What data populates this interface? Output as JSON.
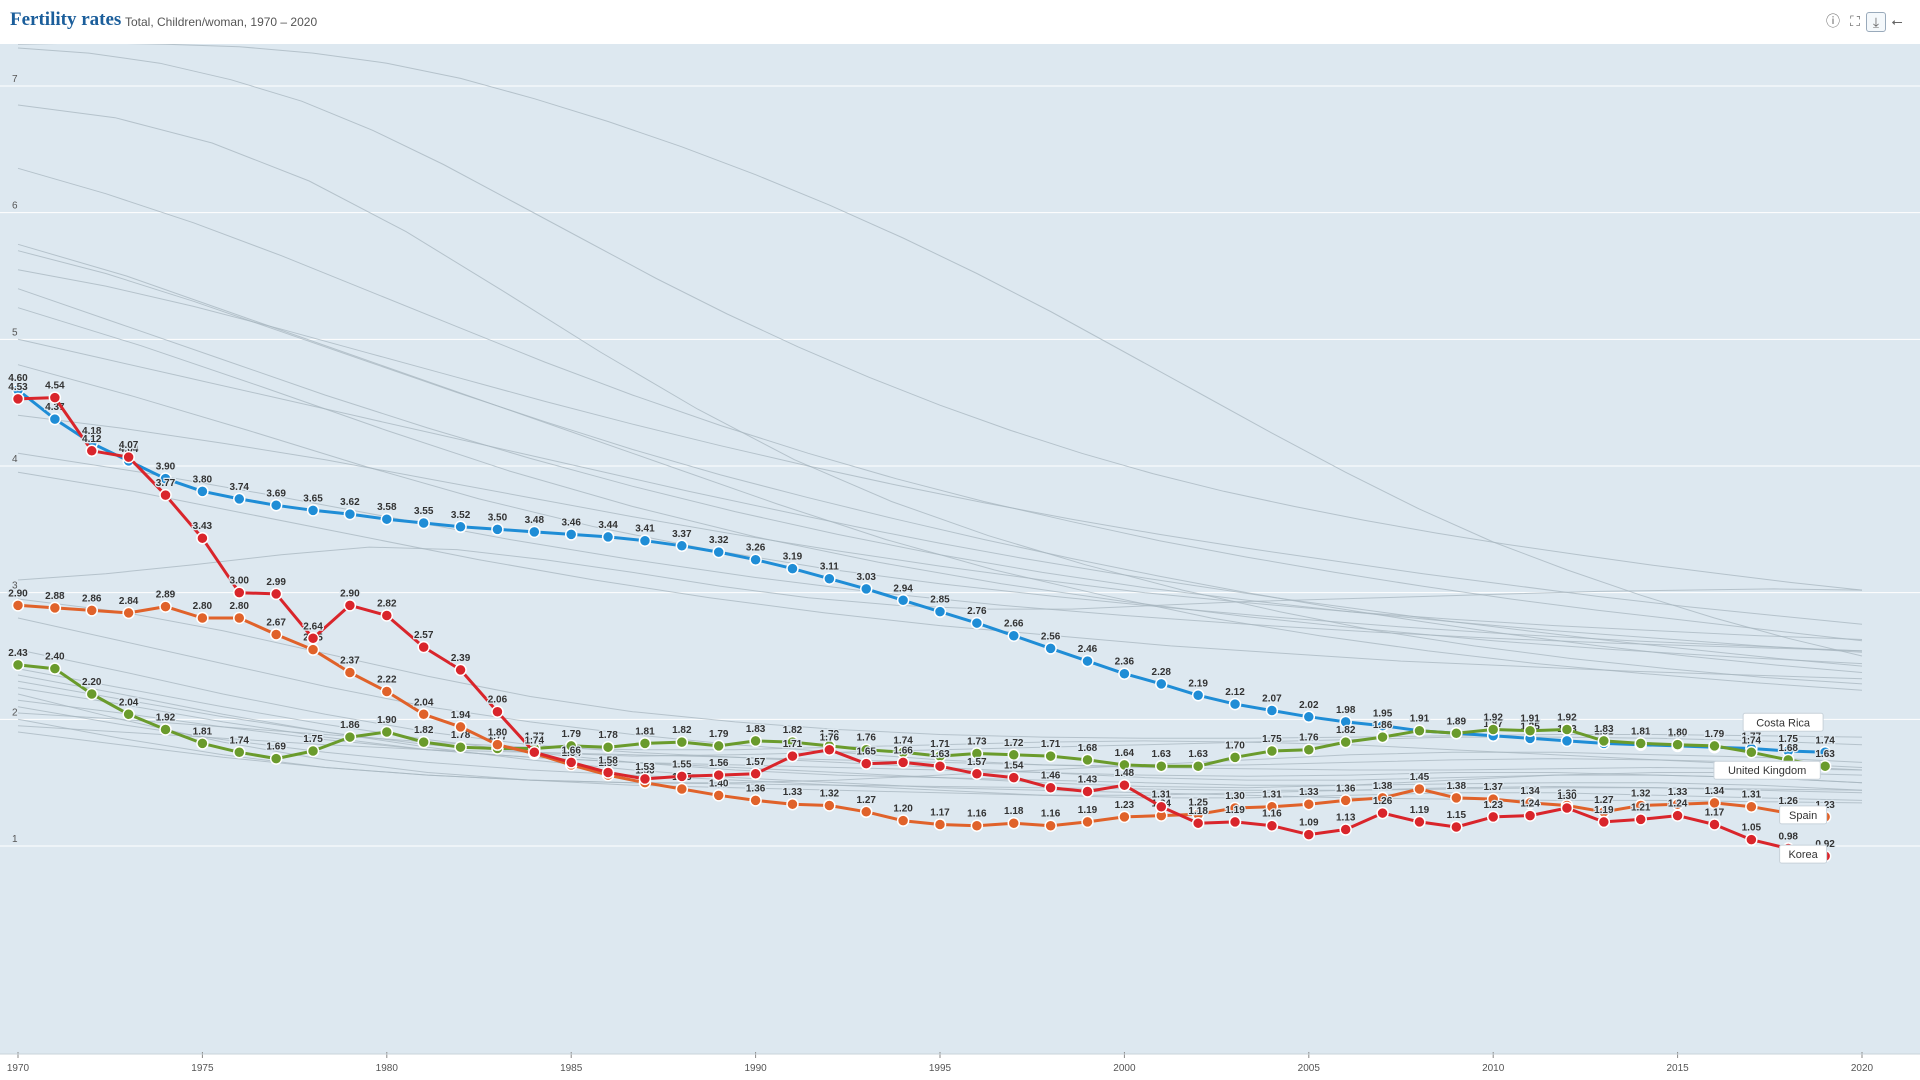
{
  "header": {
    "title": "Fertility rates",
    "subtitle": "Total, Children/woman, 1970 – 2020",
    "tools": [
      "info-icon",
      "fullscreen-icon",
      "download-icon",
      "share-icon"
    ]
  },
  "chart_data": {
    "type": "line",
    "title": "Fertility rates",
    "subtitle": "Total, Children/woman, 1970 – 2020",
    "x_ticks": [
      1970,
      1975,
      1980,
      1985,
      1990,
      1995,
      2000,
      2005,
      2010,
      2015,
      2020
    ],
    "y_ticks": [
      1,
      2,
      3,
      4,
      5,
      6,
      7
    ],
    "xlim": [
      1970,
      2020
    ],
    "ylim": [
      0.9,
      7.4
    ],
    "grid": "horizontal",
    "colors": {
      "background": "#dde8f0",
      "grid": "#ffffff",
      "background_series": "#a7b5bf"
    },
    "highlighted": [
      {
        "name": "Costa Rica",
        "color": "#1f8dd6",
        "start": 1970,
        "values": [
          4.6,
          4.37,
          4.18,
          4.04,
          3.9,
          3.8,
          3.74,
          3.69,
          3.65,
          3.62,
          3.58,
          3.55,
          3.52,
          3.5,
          3.48,
          3.46,
          3.44,
          3.41,
          3.37,
          3.32,
          3.26,
          3.19,
          3.11,
          3.03,
          2.94,
          2.85,
          2.76,
          2.66,
          2.56,
          2.46,
          2.36,
          2.28,
          2.19,
          2.12,
          2.07,
          2.02,
          1.98,
          1.95,
          1.91,
          1.89,
          1.87,
          1.85,
          1.83,
          1.81,
          1.8,
          1.79,
          1.78,
          1.77,
          1.75,
          1.74
        ]
      },
      {
        "name": "United Kingdom",
        "color": "#6a9b2c",
        "start": 1970,
        "values": [
          2.43,
          2.4,
          2.2,
          2.04,
          1.92,
          1.81,
          1.74,
          1.69,
          1.75,
          1.86,
          1.9,
          1.82,
          1.78,
          1.77,
          1.77,
          1.79,
          1.78,
          1.81,
          1.82,
          1.79,
          1.83,
          1.82,
          1.79,
          1.76,
          1.74,
          1.71,
          1.73,
          1.72,
          1.71,
          1.68,
          1.64,
          1.63,
          1.63,
          1.7,
          1.75,
          1.76,
          1.82,
          1.86,
          1.91,
          1.89,
          1.92,
          1.91,
          1.92,
          1.83,
          1.81,
          1.8,
          1.79,
          1.74,
          1.68,
          1.63
        ]
      },
      {
        "name": "Spain",
        "color": "#e0622a",
        "start": 1970,
        "values": [
          2.9,
          2.88,
          2.86,
          2.84,
          2.89,
          2.8,
          2.8,
          2.67,
          2.55,
          2.37,
          2.22,
          2.04,
          1.94,
          1.8,
          1.73,
          1.64,
          1.56,
          1.5,
          1.45,
          1.4,
          1.36,
          1.33,
          1.32,
          1.27,
          1.2,
          1.17,
          1.16,
          1.18,
          1.16,
          1.19,
          1.23,
          1.24,
          1.25,
          1.3,
          1.31,
          1.33,
          1.36,
          1.38,
          1.45,
          1.38,
          1.37,
          1.34,
          1.32,
          1.27,
          1.32,
          1.33,
          1.34,
          1.31,
          1.26,
          1.23
        ]
      },
      {
        "name": "Korea",
        "color": "#d9252b",
        "start": 1970,
        "values": [
          4.53,
          4.54,
          4.12,
          4.07,
          3.77,
          3.43,
          3.0,
          2.99,
          2.64,
          2.9,
          2.82,
          2.57,
          2.39,
          2.06,
          1.74,
          1.66,
          1.58,
          1.53,
          1.55,
          1.56,
          1.57,
          1.71,
          1.76,
          1.65,
          1.66,
          1.63,
          1.57,
          1.54,
          1.46,
          1.43,
          1.48,
          1.31,
          1.18,
          1.19,
          1.16,
          1.09,
          1.13,
          1.26,
          1.19,
          1.15,
          1.23,
          1.24,
          1.3,
          1.19,
          1.21,
          1.24,
          1.17,
          1.05,
          0.98,
          0.92
        ]
      }
    ],
    "background_series": [
      [
        7.3,
        7.26,
        7.18,
        7.05,
        6.88,
        6.65,
        6.38,
        6.08,
        5.78,
        5.48,
        5.2,
        4.94,
        4.7,
        4.48,
        4.28,
        4.1,
        3.94,
        3.8,
        3.68,
        3.57,
        3.47,
        3.38,
        3.3,
        3.22,
        3.15,
        3.08,
        3.02
      ],
      [
        7.33,
        7.34,
        7.33,
        7.31,
        7.26,
        7.18,
        7.06,
        6.9,
        6.72,
        6.52,
        6.3,
        6.06,
        5.8,
        5.52,
        5.22,
        4.9,
        4.58,
        4.26,
        3.95,
        3.66,
        3.4,
        3.18,
        2.98,
        2.8,
        2.64,
        2.5
      ],
      [
        6.85,
        6.75,
        6.55,
        6.25,
        5.85,
        5.38,
        4.9,
        4.45,
        4.05,
        3.72,
        3.45,
        3.22,
        3.02,
        2.85,
        2.7,
        2.58,
        2.48,
        2.4,
        2.33,
        2.28
      ],
      [
        6.35,
        6.15,
        5.92,
        5.66,
        5.38,
        5.1,
        4.82,
        4.56,
        4.32,
        4.1,
        3.9,
        3.72,
        3.56,
        3.41,
        3.28,
        3.16,
        3.05,
        2.95,
        2.86,
        2.78,
        2.7,
        2.62
      ],
      [
        5.75,
        5.5,
        5.2,
        4.9,
        4.6,
        4.3,
        4.0,
        3.7,
        3.42,
        3.18,
        2.98,
        2.8,
        2.66,
        2.54,
        2.44,
        2.36,
        2.29,
        2.23
      ],
      [
        5.7,
        5.52,
        5.3,
        5.06,
        4.82,
        4.58,
        4.35,
        4.13,
        3.93,
        3.75,
        3.58,
        3.42,
        3.27,
        3.13,
        3.0,
        2.88,
        2.77,
        2.67,
        2.58,
        2.5,
        2.43,
        2.37
      ],
      [
        5.55,
        5.42,
        5.26,
        5.08,
        4.89,
        4.7,
        4.51,
        4.33,
        4.16,
        4.0,
        3.85,
        3.71,
        3.58,
        3.46,
        3.35,
        3.25,
        3.15,
        3.06,
        2.97,
        2.89,
        2.82,
        2.75
      ],
      [
        5.4,
        5.12,
        4.84,
        4.56,
        4.3,
        4.06,
        3.84,
        3.64,
        3.46,
        3.3,
        3.16,
        3.04,
        2.94,
        2.85,
        2.77,
        2.7,
        2.64,
        2.58,
        2.53
      ],
      [
        5.25,
        4.95,
        4.62,
        4.28,
        3.96,
        3.68,
        3.44,
        3.24,
        3.07,
        2.93,
        2.81,
        2.71,
        2.62,
        2.55,
        2.49,
        2.44
      ],
      [
        5.0,
        4.85,
        4.7,
        4.55,
        4.4,
        4.25,
        4.1,
        3.95,
        3.8,
        3.66,
        3.52,
        3.39,
        3.27,
        3.16,
        3.06,
        2.96,
        2.87,
        2.78,
        2.7,
        2.62,
        2.55,
        2.48,
        2.42
      ],
      [
        4.8,
        4.55,
        4.28,
        4.0,
        3.74,
        3.52,
        3.34,
        3.19,
        3.07,
        2.97,
        2.88,
        2.8,
        2.73,
        2.67,
        2.62,
        2.58,
        2.54
      ],
      [
        4.4,
        4.3,
        4.18,
        4.05,
        3.9,
        3.75,
        3.6,
        3.46,
        3.33,
        3.21,
        3.1,
        3.0,
        2.92,
        2.85,
        2.79,
        2.74,
        2.7,
        2.66,
        2.63
      ],
      [
        4.1,
        3.95,
        3.78,
        3.6,
        3.42,
        3.26,
        3.12,
        3.0,
        2.9,
        2.82,
        2.75,
        2.69,
        2.64,
        2.6,
        2.57,
        2.54
      ],
      [
        3.95,
        3.8,
        3.62,
        3.44,
        3.26,
        3.1,
        2.96,
        2.84,
        2.74,
        2.66,
        2.58,
        2.52,
        2.46,
        2.42,
        2.38,
        2.35,
        2.32
      ],
      [
        3.1,
        3.15,
        3.22,
        3.3,
        3.36,
        3.34,
        3.26,
        3.16,
        3.05,
        2.96,
        2.9,
        2.87,
        2.87,
        2.9,
        2.93,
        2.95,
        2.97,
        2.99,
        3.01,
        3.02,
        3.03,
        3.02
      ],
      [
        2.95,
        2.85,
        2.7,
        2.52,
        2.34,
        2.18,
        2.06,
        1.98,
        1.92,
        1.88,
        1.86,
        1.85,
        1.85,
        1.86,
        1.87,
        1.88,
        1.88,
        1.87,
        1.86
      ],
      [
        2.8,
        2.62,
        2.44,
        2.26,
        2.1,
        1.98,
        1.88,
        1.8,
        1.74,
        1.68,
        1.64,
        1.62,
        1.61,
        1.6,
        1.6,
        1.61,
        1.62,
        1.61,
        1.6
      ],
      [
        2.55,
        2.38,
        2.2,
        2.04,
        1.9,
        1.8,
        1.74,
        1.7,
        1.66,
        1.62,
        1.58,
        1.54,
        1.52,
        1.52,
        1.54,
        1.56,
        1.56,
        1.54,
        1.5
      ],
      [
        2.4,
        2.25,
        2.1,
        1.96,
        1.84,
        1.74,
        1.66,
        1.6,
        1.56,
        1.54,
        1.52,
        1.5,
        1.48,
        1.48,
        1.49,
        1.5,
        1.5,
        1.48,
        1.44
      ],
      [
        2.3,
        2.16,
        2.02,
        1.9,
        1.8,
        1.74,
        1.71,
        1.72,
        1.74,
        1.76,
        1.78,
        1.8,
        1.82,
        1.84,
        1.86,
        1.86,
        1.85,
        1.83,
        1.8
      ],
      [
        2.2,
        2.0,
        1.82,
        1.68,
        1.58,
        1.52,
        1.48,
        1.46,
        1.44,
        1.42,
        1.4,
        1.4,
        1.42,
        1.44,
        1.46,
        1.47,
        1.46,
        1.44,
        1.42
      ],
      [
        2.1,
        1.96,
        1.84,
        1.74,
        1.66,
        1.6,
        1.56,
        1.52,
        1.48,
        1.44,
        1.4,
        1.38,
        1.38,
        1.4,
        1.42,
        1.42,
        1.4,
        1.38,
        1.36
      ],
      [
        1.95,
        1.9,
        1.85,
        1.8,
        1.76,
        1.74,
        1.72,
        1.7,
        1.68,
        1.66,
        1.64,
        1.63,
        1.64,
        1.66,
        1.68,
        1.69,
        1.68,
        1.66,
        1.62
      ],
      [
        2.0,
        1.85,
        1.72,
        1.62,
        1.56,
        1.52,
        1.5,
        1.5,
        1.52,
        1.56,
        1.6,
        1.64,
        1.68,
        1.72,
        1.74,
        1.74,
        1.72,
        1.7,
        1.66
      ],
      [
        2.25,
        2.12,
        1.98,
        1.86,
        1.76,
        1.7,
        1.66,
        1.64,
        1.62,
        1.6,
        1.58,
        1.56,
        1.55,
        1.56,
        1.58,
        1.58,
        1.56,
        1.54,
        1.5
      ],
      [
        2.15,
        2.05,
        1.94,
        1.84,
        1.76,
        1.7,
        1.66,
        1.62,
        1.58,
        1.54,
        1.5,
        1.47,
        1.46,
        1.48,
        1.52,
        1.56,
        1.58,
        1.58,
        1.56
      ],
      [
        1.9,
        1.8,
        1.7,
        1.62,
        1.56,
        1.52,
        1.5,
        1.49,
        1.48,
        1.47,
        1.46,
        1.45,
        1.44,
        1.44,
        1.45,
        1.46,
        1.46,
        1.45,
        1.44
      ],
      [
        2.35,
        2.2,
        2.04,
        1.9,
        1.78,
        1.68,
        1.6,
        1.54,
        1.5,
        1.46,
        1.44,
        1.42,
        1.4,
        1.38,
        1.37,
        1.36,
        1.36,
        1.35,
        1.34
      ],
      [
        2.05,
        2.0,
        1.94,
        1.88,
        1.82,
        1.78,
        1.76,
        1.76,
        1.78,
        1.8,
        1.82,
        1.83,
        1.82,
        1.8,
        1.76,
        1.72,
        1.68,
        1.64,
        1.6
      ]
    ],
    "labels": [
      "Costa Rica",
      "United Kingdom",
      "Spain",
      "Korea"
    ]
  }
}
